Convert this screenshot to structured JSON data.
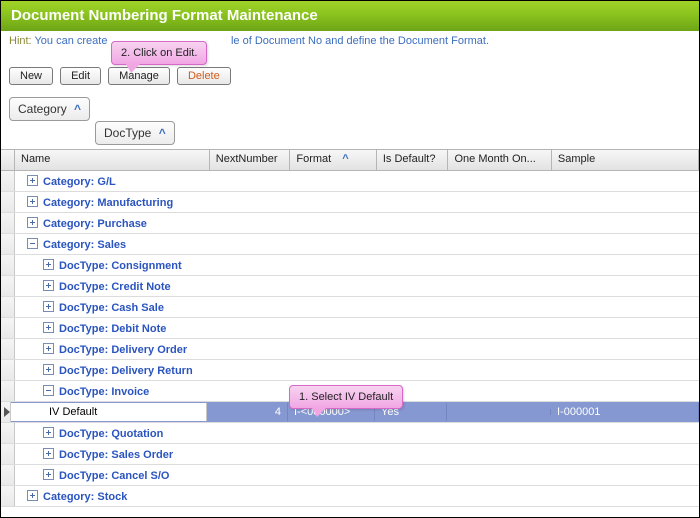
{
  "title": "Document Numbering Format Maintenance",
  "hint_label": "Hint:",
  "hint_text_left": "You can create",
  "hint_text_right": "le of Document No and define the Document Format.",
  "buttons": {
    "new": "New",
    "edit": "Edit",
    "manage": "Manage",
    "delete": "Delete"
  },
  "group_chips": {
    "category": "Category",
    "doctype": "DocType"
  },
  "columns": {
    "name": "Name",
    "next": "NextNumber",
    "format": "Format",
    "isdefault": "Is Default?",
    "onemonth": "One Month On...",
    "sample": "Sample"
  },
  "callouts": {
    "edit": "2. Click on Edit.",
    "select": "1. Select IV Default"
  },
  "rows": [
    {
      "type": "cat",
      "expanded": false,
      "label": "Category: G/L"
    },
    {
      "type": "cat",
      "expanded": false,
      "label": "Category: Manufacturing"
    },
    {
      "type": "cat",
      "expanded": false,
      "label": "Category: Purchase"
    },
    {
      "type": "cat",
      "expanded": true,
      "label": "Category: Sales"
    },
    {
      "type": "doc",
      "expanded": false,
      "label": "DocType: Consignment"
    },
    {
      "type": "doc",
      "expanded": false,
      "label": "DocType: Credit Note"
    },
    {
      "type": "doc",
      "expanded": false,
      "label": "DocType: Cash Sale"
    },
    {
      "type": "doc",
      "expanded": false,
      "label": "DocType: Debit Note"
    },
    {
      "type": "doc",
      "expanded": false,
      "label": "DocType: Delivery Order"
    },
    {
      "type": "doc",
      "expanded": false,
      "label": "DocType: Delivery Return"
    },
    {
      "type": "doc",
      "expanded": true,
      "label": "DocType: Invoice"
    },
    {
      "type": "item",
      "name": "IV Default",
      "next": "4",
      "format": "I-<000000>",
      "isdefault": "Yes",
      "onemonth": "",
      "sample": "I-000001",
      "selected": true
    },
    {
      "type": "doc",
      "expanded": false,
      "label": "DocType: Quotation"
    },
    {
      "type": "doc",
      "expanded": false,
      "label": "DocType: Sales Order"
    },
    {
      "type": "doc",
      "expanded": false,
      "label": "DocType: Cancel S/O"
    },
    {
      "type": "cat",
      "expanded": false,
      "label": "Category: Stock"
    }
  ],
  "style": {
    "header_gradient": [
      "#a0d329",
      "#6fa617"
    ],
    "selection_bg": "#8698d1",
    "link_color": "#2a54bf",
    "bubble_gradient": [
      "#f7d4f0",
      "#f1a6e4"
    ],
    "bubble_border": "#d668c8"
  }
}
